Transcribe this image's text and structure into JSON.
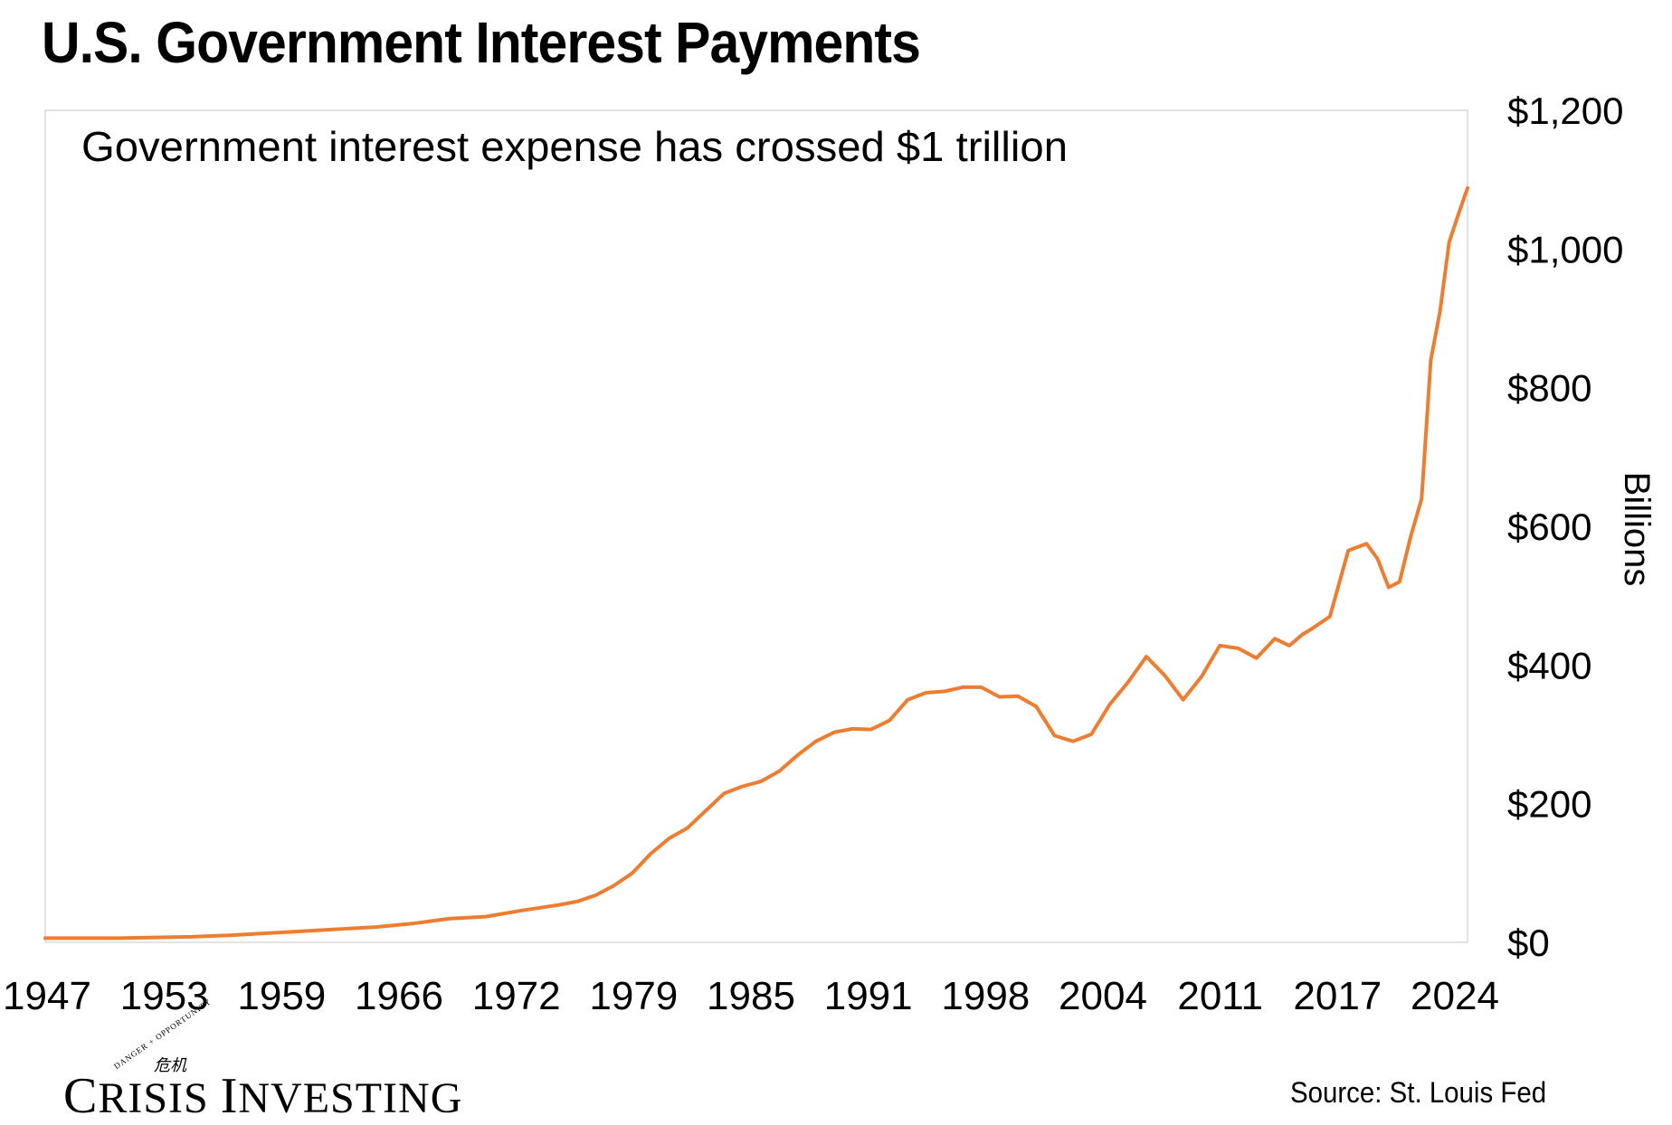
{
  "title": "U.S. Government Interest Payments",
  "source": "Source: St. Louis Fed",
  "logo": {
    "tagline": "DANGER + OPPORTUNITY",
    "name_first_initial": "C",
    "name_first_rest": "RISIS",
    "name_second_initial": "I",
    "name_second_rest": "NVESTING",
    "mark": "危机"
  },
  "colors": {
    "line": "#ED7D31",
    "frame": "#D9D9D9"
  },
  "chart_data": {
    "type": "line",
    "title": "U.S. Government Interest Payments",
    "annotation": "Government interest expense has crossed $1 trillion",
    "ylabel": "Billions",
    "xlim": [
      1947,
      2024.5
    ],
    "ylim": [
      0,
      1200
    ],
    "y_ticks": [
      0,
      200,
      400,
      600,
      800,
      1000,
      1200
    ],
    "y_tick_labels": [
      "$0",
      "$200",
      "$400",
      "$600",
      "$800",
      "$1,000",
      "$1,200"
    ],
    "x_ticks": [
      1947,
      1953,
      1959,
      1966,
      1972,
      1979,
      1985,
      1991,
      1998,
      2004,
      2011,
      2017,
      2024
    ],
    "x_tick_labels": [
      "1947",
      "1953",
      "1959",
      "1966",
      "1972",
      "1979",
      "1985",
      "1991",
      "1998",
      "2004",
      "2011",
      "2017",
      "2024"
    ],
    "y_axis_position": "right",
    "grid": false,
    "legend": "none",
    "series": [
      {
        "x": [
          1947,
          1949,
          1951,
          1953,
          1955,
          1957,
          1959,
          1961,
          1963,
          1965,
          1967,
          1969,
          1971,
          1973,
          1974,
          1975,
          1976,
          1977,
          1978,
          1979,
          1980,
          1981,
          1982,
          1983,
          1984,
          1985,
          1986,
          1987,
          1988,
          1989,
          1990,
          1991,
          1992,
          1993,
          1994,
          1995,
          1996,
          1997,
          1998,
          1999,
          2000,
          2001,
          2002,
          2003,
          2004,
          2005,
          2006,
          2007,
          2008,
          2009,
          2010,
          2011,
          2012,
          2013,
          2014,
          2014.8,
          2015.5,
          2016,
          2017,
          2018,
          2019,
          2019.6,
          2020.2,
          2020.8,
          2021.4,
          2022,
          2022.5,
          2023,
          2023.5,
          2024,
          2024.5
        ],
        "y": [
          6,
          6,
          6,
          7,
          8,
          10,
          13,
          16,
          19,
          22,
          27,
          34,
          37,
          46,
          50,
          54,
          59,
          68,
          82,
          100,
          128,
          150,
          165,
          190,
          215,
          225,
          232,
          247,
          270,
          290,
          303,
          308,
          307,
          320,
          350,
          360,
          362,
          368,
          368,
          354,
          355,
          340,
          298,
          290,
          300,
          343,
          375,
          412,
          385,
          350,
          383,
          428,
          424,
          410,
          438,
          428,
          444,
          452,
          470,
          565,
          575,
          553,
          512,
          520,
          585,
          640,
          840,
          910,
          1010,
          1050,
          1088
        ]
      }
    ]
  }
}
